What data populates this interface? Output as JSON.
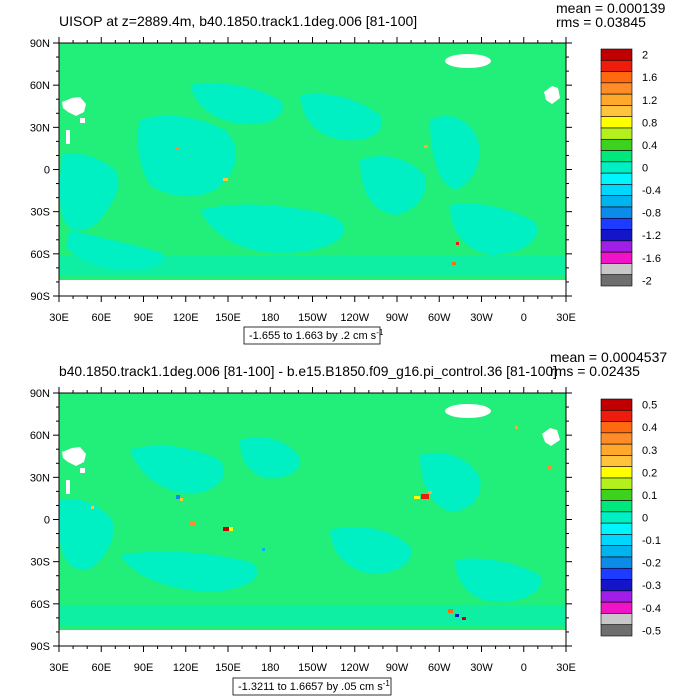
{
  "panels": [
    {
      "title": "UISOP at z=2889.4m, b40.1850.track1.1deg.006 [81-100]",
      "mean": "mean = 0.000139",
      "rms": "rms = 0.03845",
      "range_label": "-1.655 to 1.663 by .2 cm s",
      "range_sup": "-1",
      "y_ticks": [
        "90N",
        "60N",
        "30N",
        "0",
        "30S",
        "60S",
        "90S"
      ],
      "x_ticks": [
        "30E",
        "60E",
        "90E",
        "120E",
        "150E",
        "180",
        "150W",
        "120W",
        "90W",
        "60W",
        "30W",
        "0",
        "30E"
      ],
      "colorbar_labels": [
        "2",
        "1.6",
        "1.2",
        "0.8",
        "0.4",
        "0",
        "-0.4",
        "-0.8",
        "-1.2",
        "-1.6",
        "-2"
      ]
    },
    {
      "title": "b40.1850.track1.1deg.006 [81-100] - b.e15.B1850.f09_g16.pi_control.36 [81-100]",
      "mean": "mean = 0.0004537",
      "rms": "rms = 0.02435",
      "range_label": "-1.3211 to 1.6657 by .05 cm s",
      "range_sup": "-1",
      "y_ticks": [
        "90N",
        "60N",
        "30N",
        "0",
        "30S",
        "60S",
        "90S"
      ],
      "x_ticks": [
        "30E",
        "60E",
        "90E",
        "120E",
        "150E",
        "180",
        "150W",
        "120W",
        "90W",
        "60W",
        "30W",
        "0",
        "30E"
      ],
      "colorbar_labels": [
        "0.5",
        "0.4",
        "0.3",
        "0.2",
        "0.1",
        "0",
        "-0.1",
        "-0.2",
        "-0.3",
        "-0.4",
        "-0.5"
      ]
    }
  ],
  "chart_data": [
    {
      "type": "heatmap",
      "title": "UISOP at z=2889.4m, b40.1850.track1.1deg.006 [81-100]",
      "x": [
        "30E",
        "60E",
        "90E",
        "120E",
        "150E",
        "180",
        "150W",
        "120W",
        "90W",
        "60W",
        "30W",
        "0",
        "30E"
      ],
      "y": [
        "90N",
        "60N",
        "30N",
        "0",
        "30S",
        "60S",
        "90S"
      ],
      "color_levels": [
        -2,
        -1.8,
        -1.6,
        -1.4,
        -1.2,
        -1,
        -0.8,
        -0.6,
        -0.4,
        -0.2,
        0,
        0.2,
        0.4,
        0.6,
        0.8,
        1,
        1.2,
        1.4,
        1.6,
        1.8,
        2
      ],
      "data_range": [
        -1.655,
        1.663
      ],
      "contour_interval": 0.2,
      "units": "cm s-1",
      "mean": 0.000139,
      "rms": 0.03845,
      "dominant_level": [
        0,
        0.2
      ]
    },
    {
      "type": "heatmap",
      "title": "b40.1850.track1.1deg.006 [81-100] - b.e15.B1850.f09_g16.pi_control.36 [81-100]",
      "x": [
        "30E",
        "60E",
        "90E",
        "120E",
        "150E",
        "180",
        "150W",
        "120W",
        "90W",
        "60W",
        "30W",
        "0",
        "30E"
      ],
      "y": [
        "90N",
        "60N",
        "30N",
        "0",
        "30S",
        "60S",
        "90S"
      ],
      "color_levels": [
        -0.5,
        -0.45,
        -0.4,
        -0.35,
        -0.3,
        -0.25,
        -0.2,
        -0.15,
        -0.1,
        -0.05,
        0,
        0.05,
        0.1,
        0.15,
        0.2,
        0.25,
        0.3,
        0.35,
        0.4,
        0.45,
        0.5
      ],
      "data_range": [
        -1.3211,
        1.6657
      ],
      "contour_interval": 0.05,
      "units": "cm s-1",
      "mean": 0.0004537,
      "rms": 0.02435,
      "dominant_level": [
        0,
        0.05
      ]
    }
  ],
  "colors": {
    "colorbar_top_to_bottom": [
      "#c00000",
      "#ee1c0c",
      "#ff6a10",
      "#ff8c28",
      "#ffa82c",
      "#ffc43c",
      "#ffff00",
      "#b4f01c",
      "#3cd21e",
      "#00e87c",
      "#00f0c4",
      "#00f5ff",
      "#00d7ff",
      "#00b4f0",
      "#0a8ce8",
      "#1e3cff",
      "#1414c8",
      "#a01ee6",
      "#f014c8",
      "#c8c8c8",
      "#6e6e6e"
    ],
    "ocean_main": "#22ee7a",
    "ocean_neg": "#00f0c4"
  }
}
